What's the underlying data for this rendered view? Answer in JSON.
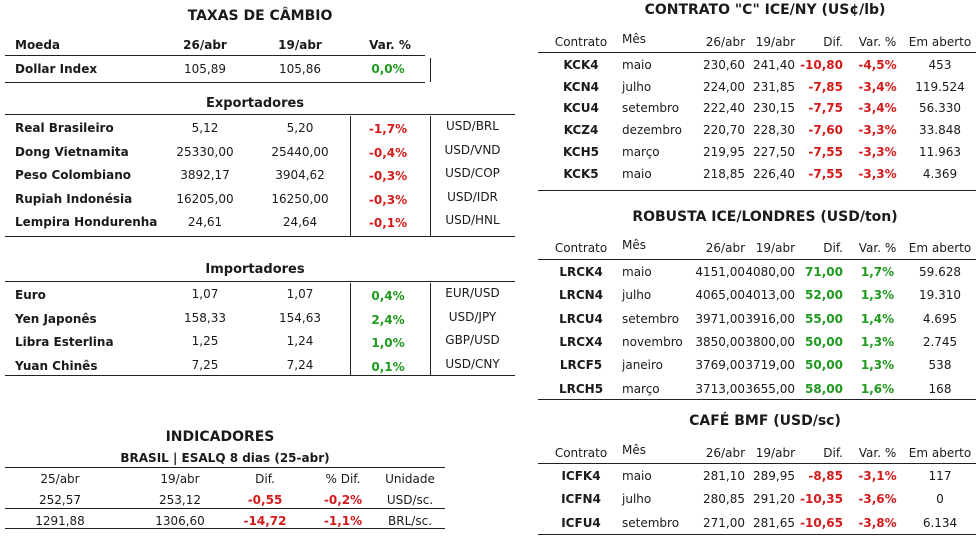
{
  "fx": {
    "title": "TAXAS DE CÂMBIO",
    "headers": [
      "Moeda",
      "26/abr",
      "19/abr",
      "Var. %"
    ],
    "index_row": {
      "name": "Dollar Index",
      "v1": "105,89",
      "v2": "105,86",
      "var": "0,0%"
    },
    "exporters_title": "Exportadores",
    "exporters": [
      {
        "name": "Real Brasileiro",
        "v1": "5,12",
        "v2": "5,20",
        "var": "-1,7%",
        "pair": "USD/BRL"
      },
      {
        "name": "Dong Vietnamita",
        "v1": "25330,00",
        "v2": "25440,00",
        "var": "-0,4%",
        "pair": "USD/VND"
      },
      {
        "name": "Peso Colombiano",
        "v1": "3892,17",
        "v2": "3904,62",
        "var": "-0,3%",
        "pair": "USD/COP"
      },
      {
        "name": "Rupiah Indonésia",
        "v1": "16205,00",
        "v2": "16250,00",
        "var": "-0,3%",
        "pair": "USD/IDR"
      },
      {
        "name": "Lempira Hondurenha",
        "v1": "24,61",
        "v2": "24,64",
        "var": "-0,1%",
        "pair": "USD/HNL"
      }
    ],
    "importers_title": "Importadores",
    "importers": [
      {
        "name": "Euro",
        "v1": "1,07",
        "v2": "1,07",
        "var": "0,4%",
        "pair": "EUR/USD"
      },
      {
        "name": "Yen Japonês",
        "v1": "158,33",
        "v2": "154,63",
        "var": "2,4%",
        "pair": "USD/JPY"
      },
      {
        "name": "Libra Esterlina",
        "v1": "1,25",
        "v2": "1,24",
        "var": "1,0%",
        "pair": "GBP/USD"
      },
      {
        "name": "Yuan Chinês",
        "v1": "7,25",
        "v2": "7,24",
        "var": "0,1%",
        "pair": "USD/CNY"
      }
    ]
  },
  "indicators": {
    "title": "INDICADORES",
    "subtitle": "BRASIL | ESALQ 8 dias (25-abr)",
    "headers": [
      "25/abr",
      "19/abr",
      "Dif.",
      "% Dif.",
      "Unidade"
    ],
    "rows": [
      {
        "v1": "252,57",
        "v2": "253,12",
        "dif": "-0,55",
        "pct": "-0,2%",
        "unit": "USD/sc."
      },
      {
        "v1": "1291,88",
        "v2": "1306,60",
        "dif": "-14,72",
        "pct": "-1,1%",
        "unit": "BRL/sc."
      }
    ]
  },
  "markets": [
    {
      "title": "CONTRATO \"C\" ICE/NY (US¢/lb)",
      "headers": [
        "Contrato",
        "Mês",
        "26/abr",
        "19/abr",
        "Dif.",
        "Var. %",
        "Em aberto"
      ],
      "rows": [
        {
          "c": "KCK4",
          "m": "maio",
          "v1": "230,60",
          "v2": "241,40",
          "dif": "-10,80",
          "var": "-4,5%",
          "oi": "453"
        },
        {
          "c": "KCN4",
          "m": "julho",
          "v1": "224,00",
          "v2": "231,85",
          "dif": "-7,85",
          "var": "-3,4%",
          "oi": "119.524"
        },
        {
          "c": "KCU4",
          "m": "setembro",
          "v1": "222,40",
          "v2": "230,15",
          "dif": "-7,75",
          "var": "-3,4%",
          "oi": "56.330"
        },
        {
          "c": "KCZ4",
          "m": "dezembro",
          "v1": "220,70",
          "v2": "228,30",
          "dif": "-7,60",
          "var": "-3,3%",
          "oi": "33.848"
        },
        {
          "c": "KCH5",
          "m": "março",
          "v1": "219,95",
          "v2": "227,50",
          "dif": "-7,55",
          "var": "-3,3%",
          "oi": "11.963"
        },
        {
          "c": "KCK5",
          "m": "maio",
          "v1": "218,85",
          "v2": "226,40",
          "dif": "-7,55",
          "var": "-3,3%",
          "oi": "4.369"
        }
      ]
    },
    {
      "title": "ROBUSTA ICE/LONDRES (USD/ton)",
      "headers": [
        "Contrato",
        "Mês",
        "26/abr",
        "19/abr",
        "Dif.",
        "Var. %",
        "Em aberto"
      ],
      "rows": [
        {
          "c": "LRCK4",
          "m": "maio",
          "v1": "4151,00",
          "v2": "4080,00",
          "dif": "71,00",
          "var": "1,7%",
          "oi": "59.628"
        },
        {
          "c": "LRCN4",
          "m": "julho",
          "v1": "4065,00",
          "v2": "4013,00",
          "dif": "52,00",
          "var": "1,3%",
          "oi": "19.310"
        },
        {
          "c": "LRCU4",
          "m": "setembro",
          "v1": "3971,00",
          "v2": "3916,00",
          "dif": "55,00",
          "var": "1,4%",
          "oi": "4.695"
        },
        {
          "c": "LRCX4",
          "m": "novembro",
          "v1": "3850,00",
          "v2": "3800,00",
          "dif": "50,00",
          "var": "1,3%",
          "oi": "2.745"
        },
        {
          "c": "LRCF5",
          "m": "janeiro",
          "v1": "3769,00",
          "v2": "3719,00",
          "dif": "50,00",
          "var": "1,3%",
          "oi": "538"
        },
        {
          "c": "LRCH5",
          "m": "março",
          "v1": "3713,00",
          "v2": "3655,00",
          "dif": "58,00",
          "var": "1,6%",
          "oi": "168"
        }
      ]
    },
    {
      "title": "CAFÉ BMF (USD/sc)",
      "headers": [
        "Contrato",
        "Mês",
        "26/abr",
        "19/abr",
        "Dif.",
        "Var. %",
        "Em aberto"
      ],
      "rows": [
        {
          "c": "ICFK4",
          "m": "maio",
          "v1": "281,10",
          "v2": "289,95",
          "dif": "-8,85",
          "var": "-3,1%",
          "oi": "117"
        },
        {
          "c": "ICFN4",
          "m": "julho",
          "v1": "280,85",
          "v2": "291,20",
          "dif": "-10,35",
          "var": "-3,6%",
          "oi": "0"
        },
        {
          "c": "ICFU4",
          "m": "setembro",
          "v1": "271,00",
          "v2": "281,65",
          "dif": "-10,65",
          "var": "-3,8%",
          "oi": "6.134"
        }
      ]
    }
  ],
  "colors": {
    "positive": "#1e9a1e",
    "negative": "#d61a1a",
    "text": "#1a1a1a"
  }
}
